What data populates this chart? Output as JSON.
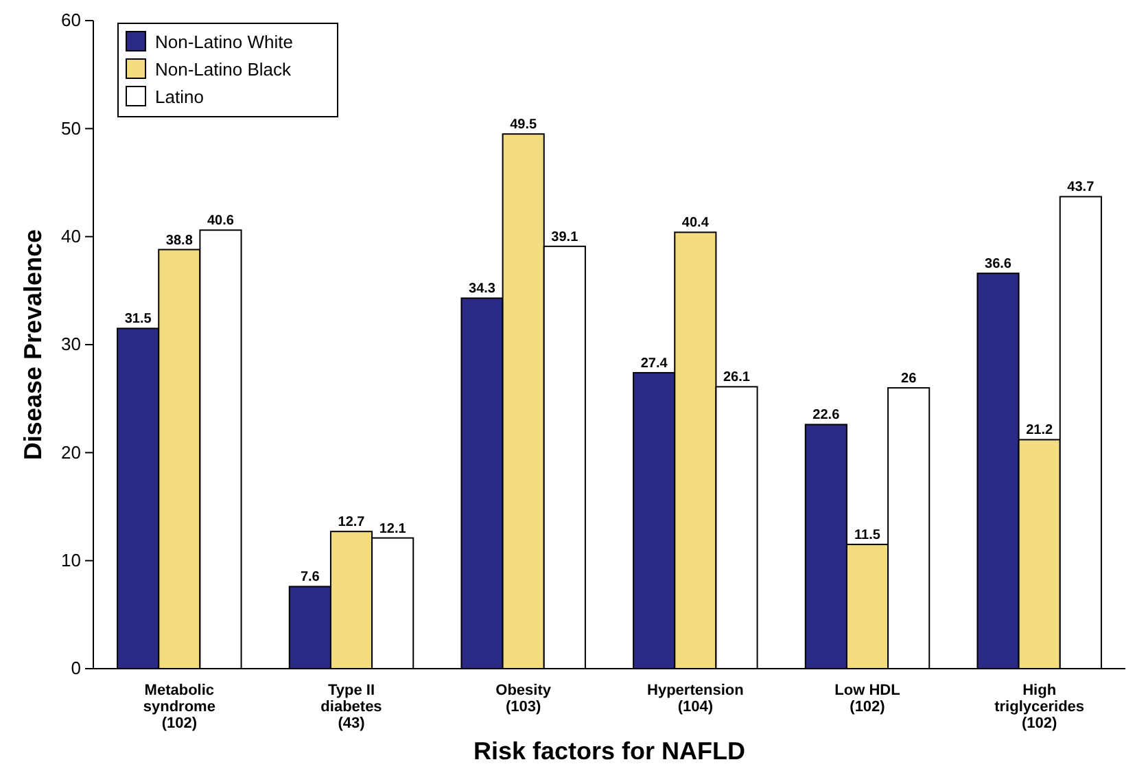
{
  "chart_data": {
    "type": "bar",
    "xlabel": "Risk factors for NAFLD",
    "ylabel": "Disease Prevalence",
    "categories": [
      "Metabolic\nsyndrome\n(102)",
      "Type II\ndiabetes\n(43)",
      "Obesity\n(103)",
      "Hypertension\n(104)",
      "Low HDL\n(102)",
      "High\ntriglycerides\n(102)"
    ],
    "series": [
      {
        "name": "Non-Latino White",
        "color": "#2b2a85",
        "values": [
          31.5,
          7.6,
          34.3,
          27.4,
          22.6,
          36.6
        ]
      },
      {
        "name": "Non-Latino Black",
        "color": "#f3dc80",
        "values": [
          38.8,
          12.7,
          49.5,
          40.4,
          11.5,
          21.2
        ]
      },
      {
        "name": "Latino",
        "color": "#ffffff",
        "values": [
          40.6,
          12.1,
          39.1,
          26.1,
          26,
          43.7
        ]
      }
    ],
    "ylim": [
      0,
      60
    ],
    "yticks": [
      0,
      10,
      20,
      30,
      40,
      50,
      60
    ],
    "data_labels": true,
    "legend": "top left"
  }
}
